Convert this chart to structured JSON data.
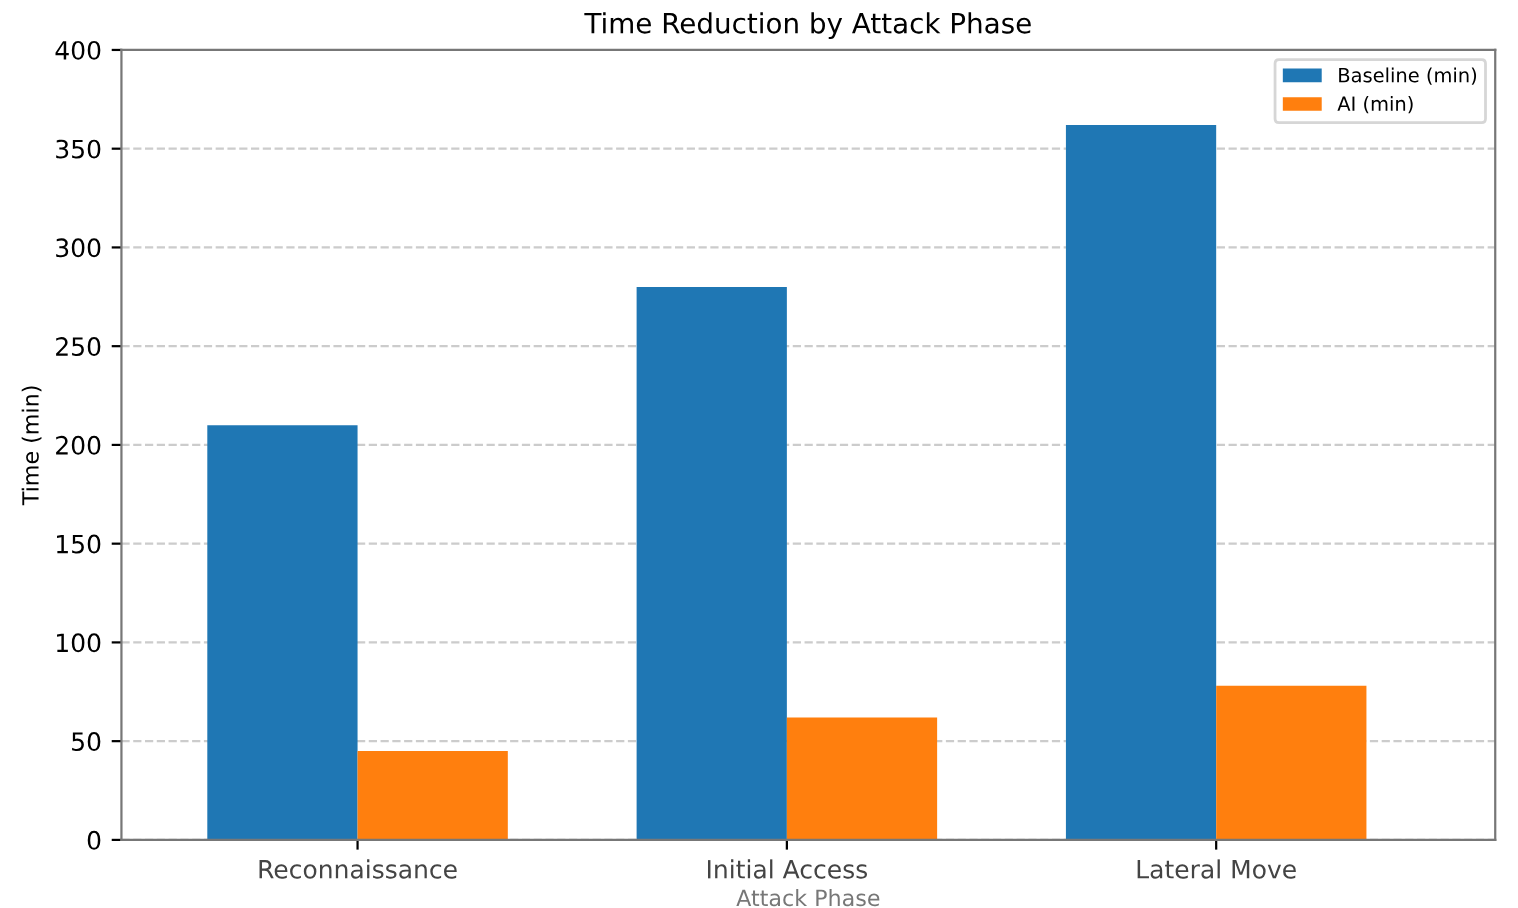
{
  "chart_data": {
    "type": "bar",
    "title": "Time Reduction by Attack Phase",
    "xlabel": "Attack Phase",
    "ylabel": "Time (min)",
    "categories": [
      "Reconnaissance",
      "Initial Access",
      "Lateral Move"
    ],
    "series": [
      {
        "name": "Baseline (min)",
        "color": "#1f77b4",
        "values": [
          210,
          280,
          362
        ]
      },
      {
        "name": "AI (min)",
        "color": "#ff7f0e",
        "values": [
          45,
          62,
          78
        ]
      }
    ],
    "ylim": [
      0,
      400
    ],
    "yticks": [
      0,
      50,
      100,
      150,
      200,
      250,
      300,
      350,
      400
    ],
    "grid": "y",
    "legend": "top right"
  }
}
